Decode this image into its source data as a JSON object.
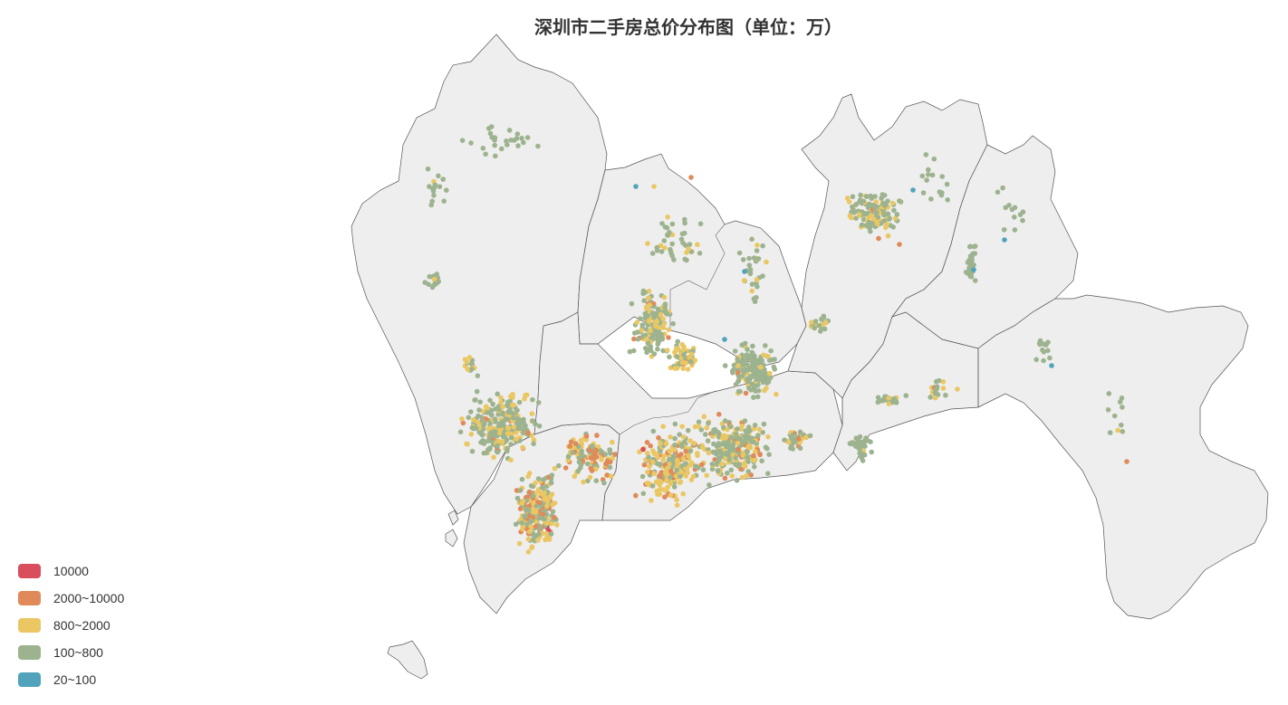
{
  "title": "深圳市二手房总价分布图（单位：万）",
  "legend": [
    {
      "label": "10000",
      "color": "#d94e5d"
    },
    {
      "label": "2000~10000",
      "color": "#e08a5a"
    },
    {
      "label": "800~2000",
      "color": "#eac763"
    },
    {
      "label": "100~800",
      "color": "#9db38f"
    },
    {
      "label": "20~100",
      "color": "#50a3ba"
    }
  ],
  "map_style": {
    "land_color": "#eeeeee",
    "border_color": "#555555"
  },
  "chart_data": {
    "type": "scatter",
    "title": "深圳市二手房总价分布图（单位：万）",
    "xlabel": "",
    "ylabel": "",
    "legend_position": "bottom-left",
    "series": [
      {
        "name": "10000",
        "color": "#d94e5d",
        "count": 6
      },
      {
        "name": "2000~10000",
        "color": "#e08a5a",
        "count": 120
      },
      {
        "name": "800~2000",
        "color": "#eac763",
        "count": 420
      },
      {
        "name": "100~800",
        "color": "#9db38f",
        "count": 1500
      },
      {
        "name": "20~100",
        "color": "#50a3ba",
        "count": 7
      }
    ]
  }
}
